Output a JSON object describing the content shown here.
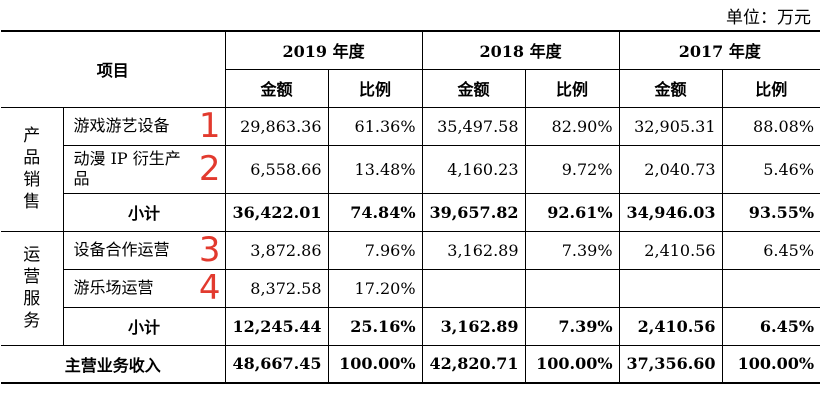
{
  "unit_label": "单位：万元",
  "header": {
    "project": "项目",
    "years": [
      "2019 年度",
      "2018 年度",
      "2017 年度"
    ],
    "amount": "金额",
    "ratio": "比例"
  },
  "groups": [
    {
      "category_chars": [
        "产",
        "品",
        "销",
        "售"
      ],
      "items": [
        {
          "name": "游戏游艺设备",
          "marker": "1",
          "values": [
            "29,863.36",
            "61.36%",
            "35,497.58",
            "82.90%",
            "32,905.31",
            "88.08%"
          ]
        },
        {
          "name": "动漫 IP 衍生产品",
          "marker": "2",
          "values": [
            "6,558.66",
            "13.48%",
            "4,160.23",
            "9.72%",
            "2,040.73",
            "5.46%"
          ]
        }
      ],
      "subtotal": {
        "label": "小计",
        "values": [
          "36,422.01",
          "74.84%",
          "39,657.82",
          "92.61%",
          "34,946.03",
          "93.55%"
        ]
      }
    },
    {
      "category_chars": [
        "运",
        "营",
        "服",
        "务"
      ],
      "items": [
        {
          "name": "设备合作运营",
          "marker": "3",
          "values": [
            "3,872.86",
            "7.96%",
            "3,162.89",
            "7.39%",
            "2,410.56",
            "6.45%"
          ]
        },
        {
          "name": "游乐场运营",
          "marker": "4",
          "values": [
            "8,372.58",
            "17.20%",
            "",
            "",
            "",
            ""
          ]
        }
      ],
      "subtotal": {
        "label": "小计",
        "values": [
          "12,245.44",
          "25.16%",
          "3,162.89",
          "7.39%",
          "2,410.56",
          "6.45%"
        ]
      }
    }
  ],
  "total": {
    "label": "主营业务收入",
    "values": [
      "48,667.45",
      "100.00%",
      "42,820.71",
      "100.00%",
      "37,356.60",
      "100.00%"
    ]
  },
  "marker_color": "#e23a2e"
}
